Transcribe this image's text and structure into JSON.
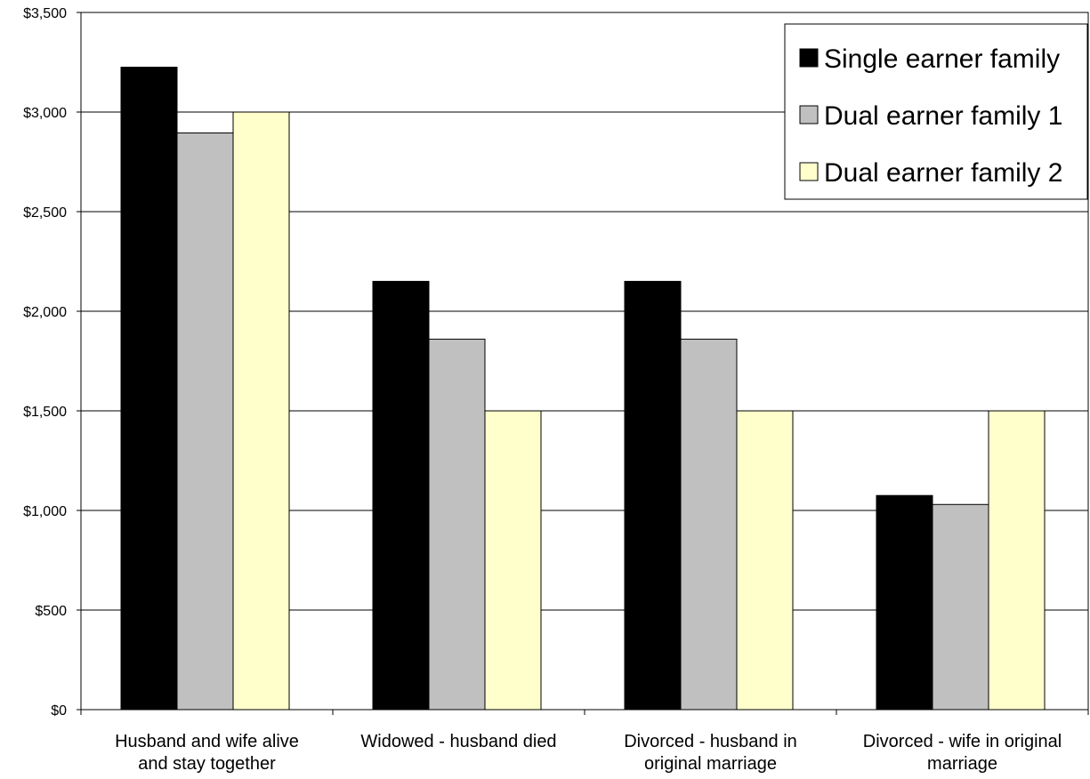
{
  "chart_data": {
    "type": "bar",
    "title": "",
    "xlabel": "",
    "ylabel": "",
    "ylim": [
      0,
      3500
    ],
    "y_ticks": [
      {
        "value": 0,
        "label": "$0"
      },
      {
        "value": 500,
        "label": "$500"
      },
      {
        "value": 1000,
        "label": "$1,000"
      },
      {
        "value": 1500,
        "label": "$1,500"
      },
      {
        "value": 2000,
        "label": "$2,000"
      },
      {
        "value": 2500,
        "label": "$2,500"
      },
      {
        "value": 3000,
        "label": "$3,000"
      },
      {
        "value": 3500,
        "label": "$3,500"
      }
    ],
    "categories": [
      [
        "Husband and wife alive",
        "and stay together"
      ],
      [
        "Widowed - husband died"
      ],
      [
        "Divorced - husband in",
        "original marriage"
      ],
      [
        "Divorced - wife in original",
        "marriage"
      ]
    ],
    "series": [
      {
        "name": "Single earner family",
        "color": "#000000",
        "values": [
          3225,
          2150,
          2150,
          1075
        ]
      },
      {
        "name": "Dual earner family 1",
        "color": "#c0c0c0",
        "values": [
          2895,
          1860,
          1860,
          1030
        ]
      },
      {
        "name": "Dual earner family 2",
        "color": "#ffffcc",
        "values": [
          3000,
          1500,
          1500,
          1500
        ]
      }
    ],
    "grid": true,
    "legend_position": "top-right"
  }
}
